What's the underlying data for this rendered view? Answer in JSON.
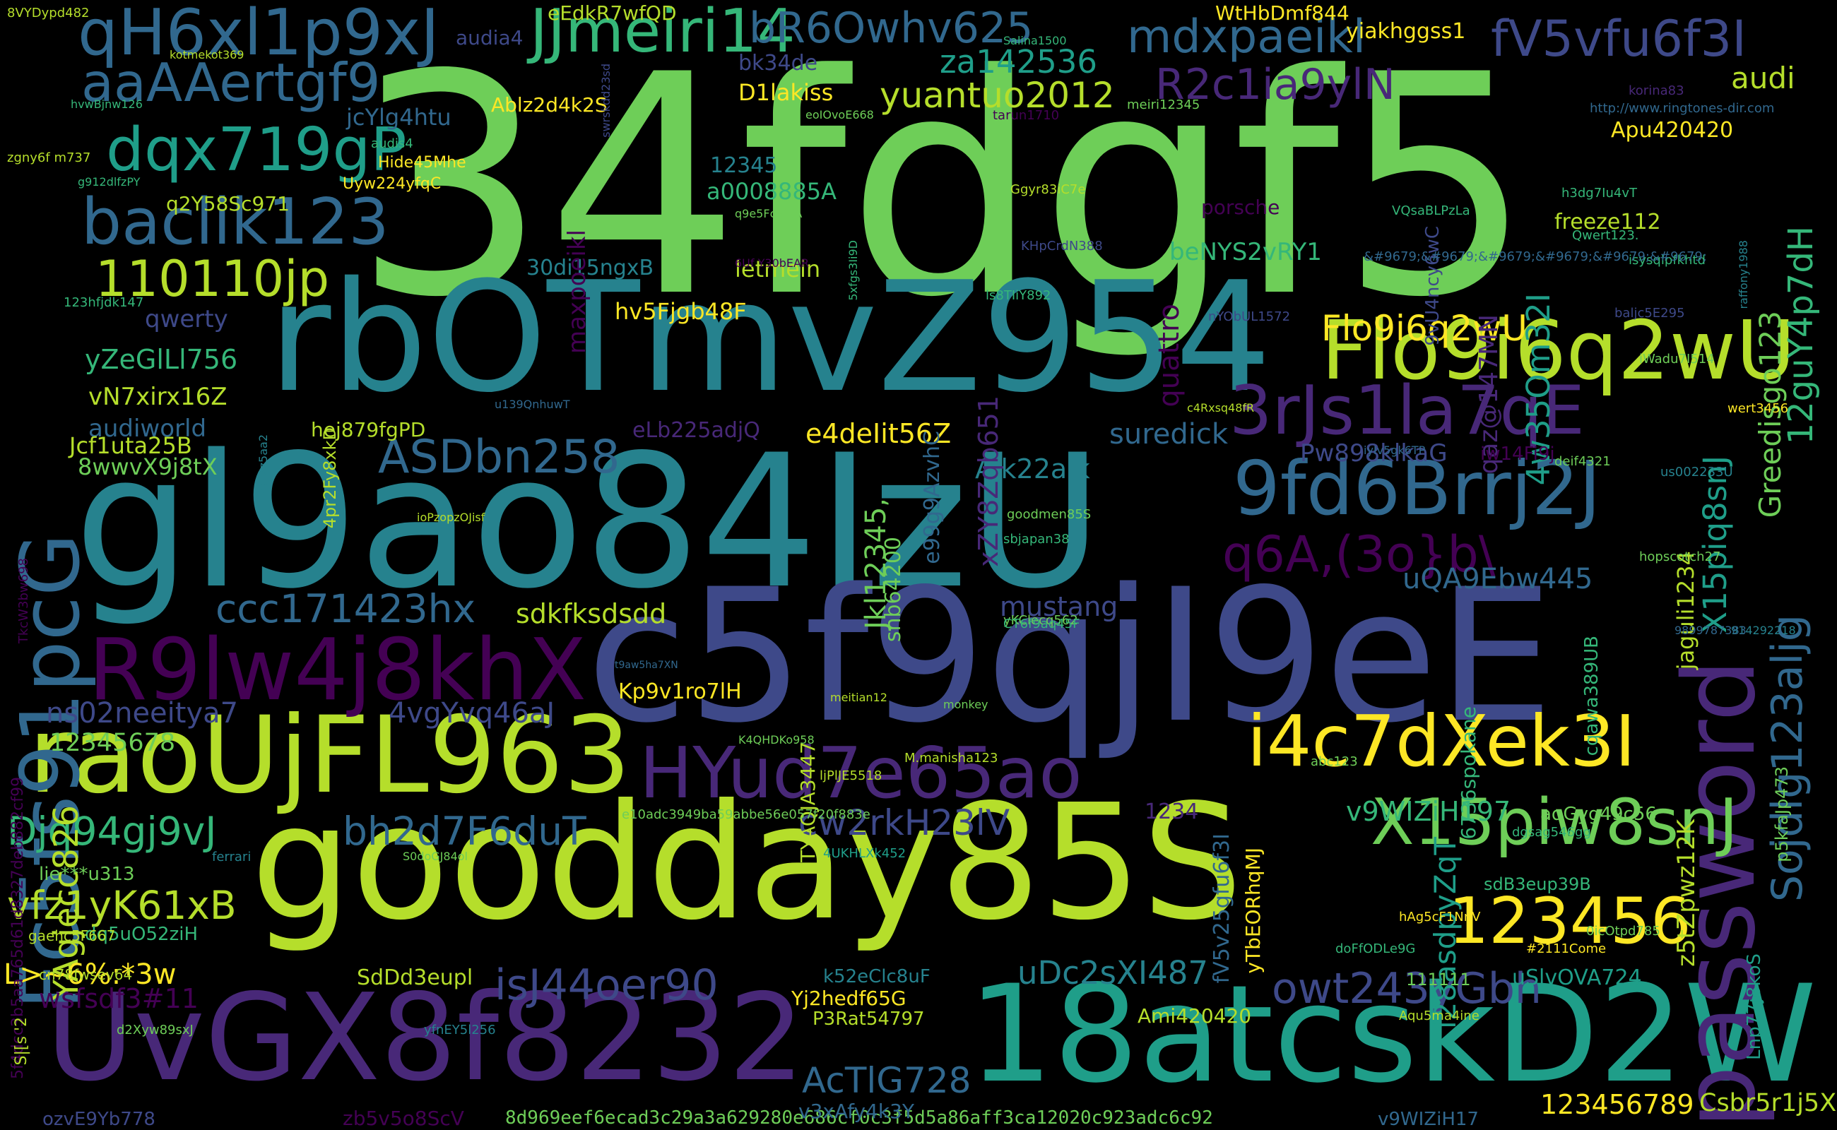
{
  "palette": {
    "background": "#000000",
    "viridis": [
      "#440154",
      "#482878",
      "#3e4989",
      "#31688e",
      "#26828e",
      "#1f9e89",
      "#35b779",
      "#6ece58",
      "#b5de2b",
      "#fde725"
    ]
  },
  "words": [
    "34fdgf5",
    "gl9ao84IzU",
    "c5f9qjI9eE",
    "goodday85S",
    "rbOTmvZ954",
    "18atcskD2W",
    "UvGX8f8232",
    "raoUjFL963",
    "password",
    "R9lw4j8khX",
    "HYud7e65ao",
    "Flo9i6q2wU",
    "Fc5fs91pcG",
    "9fd6Brrj2J",
    "i4c7dXek3I",
    "3rJs1la7qE",
    "X15piw8snJ",
    "123456",
    "qH6xl1p9xJ",
    "JJmeiri14",
    "baclik123",
    "dqx719gP",
    "aaAAertgf9",
    "110110jp",
    "ASDbn258",
    "ccc171423hx",
    "Djq94gj9vJ",
    "vfz1yK61xB",
    "isJ44oer90",
    "bh2d7F6duT",
    "q6A,(3o}b\\",
    "owt243yGbh",
    "bR6Owhv625",
    "mdxpaeikl",
    "fV5vfu6f3I",
    "R2c1ia9ylN",
    "YAgjecc826",
    "Sojdlg123aljg",
    "yuantuo2012",
    "za142536",
    "Flo9i6q2wU",
    "cw2rkH23lV",
    "AcTlG728",
    "uDc2sXI487",
    "X15piq8snJ",
    "Greedisgo123",
    "12guY4p7dH",
    "4w35Om32I",
    "i28asdpyZqT",
    "uQA9Ebw445",
    "v9WIZiH197",
    "123456789",
    "Csbr5r1j5X",
    "12345678",
    "ns02neeitya7",
    "4vgYvq46aJ",
    "L>~6%:*3w",
    "wsfsdf3#11",
    "mustang",
    "suredick",
    "Alk22alk",
    "e4deIit56Z",
    "Pw898klkaG",
    "z5tZpwz12K",
    "jaguli1234",
    "sdkfksdsdd",
    "8d969eef6ecad3c29a3a629280e686cf0c3f5d5a86aff3ca12020c923adc6c92",
    "audi",
    "Apu420420",
    "freeze112",
    "quattro",
    "beNYS2vRY1",
    "qaz@147MN",
    "audiworld",
    "qwerty",
    "yZeGlLl756",
    "vN7xirx16Z",
    "Jcf1uta25B",
    "8wwvX9j8tX",
    "hej879fgPD",
    "eLb225adjQ",
    "hv5Fjgb48F",
    "30di15ngxB",
    "letmein",
    "Ablz2d4k2S",
    "q2Y58Sc971",
    "Jkl12345,",
    "xZY8Zqb651",
    "e99g9AzvhC",
    "maxpoeikl",
    "12345",
    "a0008885A",
    "D1lakiss",
    "bk34de",
    "jcYlg4htu",
    "audia4",
    "eEdkR7wfQD",
    "WtHbDmf844",
    "yiakhggss1",
    "snb64200",
    "TYAQJA3447",
    "Kp9v1ro7lH",
    "dq5uO52ziH",
    "lie***u313",
    "SdDd3eupl",
    "Yj2hedf65G",
    "P3Rat54797",
    "k52eClc8uF",
    "v3xAfy4k3Y",
    "1234",
    "fV5v25gfu6f3I",
    "yTbEORhqMJ",
    "sdB3eup39B",
    "aqGyg49c56",
    "p5kfaJp473",
    "Ami420420",
    "uSlvOVA724",
    "111111",
    "Lnp77j8koS",
    "6736spokane",
    "cqawa389UB",
    "ozvE9Yb778",
    "zb5v5o8ScV",
    "v9WIZiH17",
    "5f4dcc3b5aa765d61d8327deb882cf99",
    "porsche",
    "9vU4ncy6wC",
    "iw14Fi9j",
    "Hide45Mhe",
    "Uyw224yfqC",
    "4pr2Fy8xkD",
    "8VYDypd482",
    "tarun1710",
    "meiri12345",
    "http://www.ringtones-dir.com",
    "korina83",
    "h3dg7Iu4vT",
    "Qwert123.",
    "isysqlpfkhtd",
    "baljc5E295",
    "nYObUL1572",
    "Ggyr83iC7e",
    "KHpCrdN388",
    "ls8TIiY892",
    "5xfgs3Ii9D",
    "6Uf Y30bEAR",
    "123hfjdk147",
    "TkcW3bw698",
    "ioPzopzOJisf",
    "goodmen85S",
    "sbjapan38",
    "yKClecq562",
    "CT6f9aq45F",
    "K4QHDKo958",
    "M.manisha123",
    "ljPlJE5518",
    "abc123",
    "4UKHLXk452",
    "e10adc3949ba59abbe56e057f20f883e",
    "S0doGJ84ol",
    "ferrari",
    "ssE2z5aa2",
    "gaehc5F667",
    "cn78fwsev64",
    "S|[s '2",
    "d2Xyw89sxJ",
    "yfnEY5l256",
    "hAg5cF1NnV",
    "doFfODLe9G",
    "0icOtpd785",
    "#2111Come",
    "Aqu5ma4ine",
    "dgsag546gg",
    "wert3456",
    "raffony1988",
    "hopscotch27",
    "us002233U",
    "iWadu7I514",
    "deif4321",
    "914292218",
    "9899787383",
    "zgny6f m737",
    "g912dlfzPY",
    "hvwBjnw126",
    "kotmekot369",
    "swrskdd23sd",
    "Salina1500",
    "q9e5Fc3fbA",
    "audis4",
    "eoIOvoE668",
    "t9aw5ha7XN",
    "meitian12",
    "monkey",
    "c4Rxsq48fR",
    "u139QnhuwT",
    "iyIv5gk6TP",
    "VQsaBLPzLa",
    "&#9679;&#9679;&#9679;&#9679;&#9679;&#9679;"
  ]
}
